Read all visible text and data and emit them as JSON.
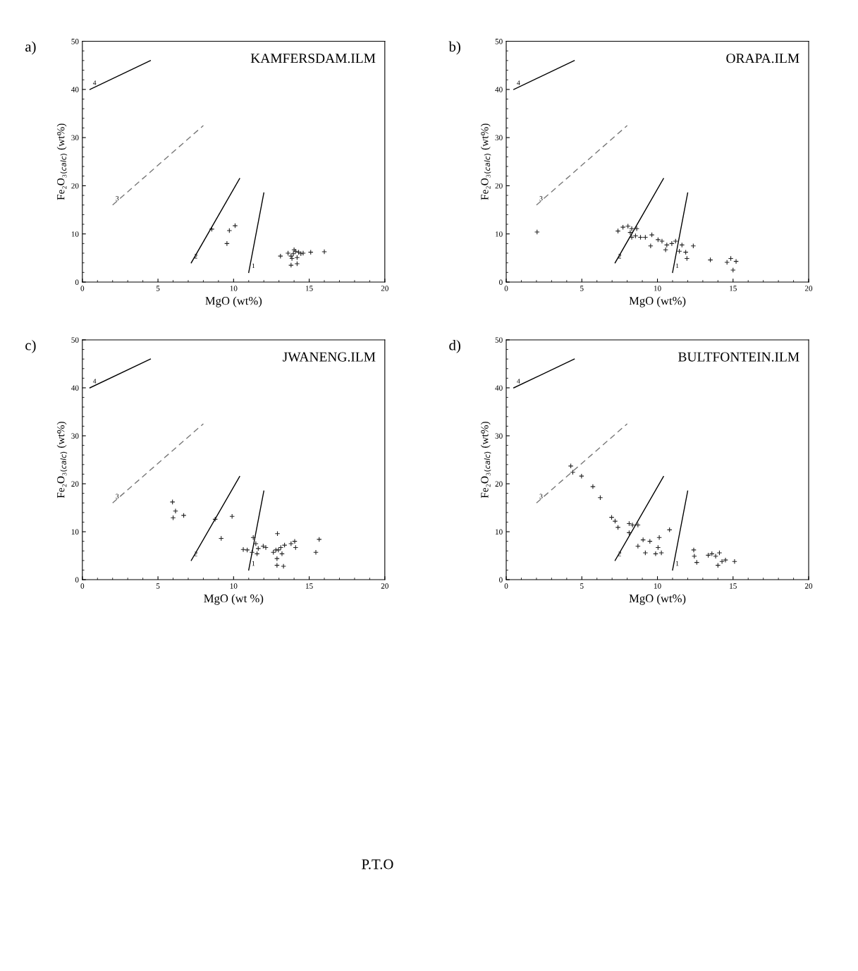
{
  "chart_data": [
    {
      "type": "scatter",
      "title": "a)",
      "subtitle": "KAMFERSDAM.ILM",
      "xlabel": "MgO (wt%)",
      "ylabel": "Fe₂O₃$_{(calc)}$ (wt%)",
      "xlim": [
        0,
        20
      ],
      "ylim": [
        0,
        50
      ],
      "xticks": [
        0,
        5,
        10,
        15,
        20
      ],
      "yticks": [
        0,
        10,
        20,
        30,
        40,
        50
      ],
      "grid": false,
      "series": [
        {
          "marker": "cross",
          "color": "#222222",
          "x": [
            10.1,
            9.72,
            9.56,
            8.56,
            13.1,
            13.6,
            13.8,
            13.95,
            14.1,
            14.3,
            14.45,
            14.2,
            13.86,
            13.8,
            14.2,
            14.6,
            15.1,
            16.0,
            14.0
          ],
          "values": [
            11.7,
            10.7,
            8.0,
            11.0,
            5.4,
            6.0,
            5.4,
            5.9,
            6.4,
            6.2,
            5.9,
            5.1,
            4.9,
            3.5,
            3.8,
            6.0,
            6.2,
            6.3,
            6.7
          ]
        },
        {
          "type": "line",
          "color": "#000000",
          "line_style": "solid",
          "x": [
            0.5,
            4.5
          ],
          "values": [
            40,
            46
          ]
        },
        {
          "type": "line",
          "color": "#777777",
          "line_style": "dashed",
          "x": [
            2,
            8
          ],
          "values": [
            16,
            32.5
          ]
        },
        {
          "type": "line",
          "color": "#000000",
          "line_style": "solid",
          "x": [
            7.2,
            10.4
          ],
          "values": [
            4,
            21.5
          ]
        },
        {
          "type": "line",
          "color": "#000000",
          "line_style": "solid",
          "x": [
            11,
            12
          ],
          "values": [
            2,
            18.5
          ]
        }
      ],
      "annotations": [
        {
          "text": "4",
          "x": 0.5,
          "y": 40
        },
        {
          "text": "3",
          "x": 2,
          "y": 16
        },
        {
          "text": "2",
          "x": 7.2,
          "y": 4
        },
        {
          "text": "1",
          "x": 11,
          "y": 2
        }
      ]
    },
    {
      "type": "scatter",
      "title": "b)",
      "subtitle": "ORAPA.ILM",
      "xlabel": "MgO (wt%)",
      "ylabel": "Fe₂O₃$_{(calc)}$ (wt%)",
      "xlim": [
        0,
        20
      ],
      "ylim": [
        0,
        50
      ],
      "xticks": [
        0,
        5,
        10,
        15,
        20
      ],
      "yticks": [
        0,
        10,
        20,
        30,
        40,
        50
      ],
      "grid": false,
      "series": [
        {
          "marker": "cross",
          "color": "#222222",
          "x": [
            2.04,
            7.39,
            7.72,
            8.05,
            8.3,
            8.63,
            8.2,
            8.3,
            8.55,
            8.88,
            9.2,
            9.63,
            9.55,
            10.04,
            10.3,
            10.54,
            10.62,
            10.95,
            11.2,
            11.62,
            11.45,
            11.87,
            12.37,
            11.95,
            13.5,
            14.6,
            14.85,
            15.2,
            15.0
          ],
          "values": [
            10.4,
            10.6,
            11.4,
            11.6,
            11.1,
            11.1,
            10.3,
            9.3,
            9.6,
            9.3,
            9.3,
            9.8,
            7.5,
            8.8,
            8.5,
            6.7,
            7.7,
            8.0,
            8.5,
            7.7,
            6.4,
            6.2,
            7.5,
            4.9,
            4.6,
            4.1,
            4.9,
            4.3,
            2.5
          ]
        },
        {
          "type": "line",
          "color": "#000000",
          "line_style": "solid",
          "x": [
            0.5,
            4.5
          ],
          "values": [
            40,
            46
          ]
        },
        {
          "type": "line",
          "color": "#777777",
          "line_style": "dashed",
          "x": [
            2,
            8
          ],
          "values": [
            16,
            32.5
          ]
        },
        {
          "type": "line",
          "color": "#000000",
          "line_style": "solid",
          "x": [
            7.2,
            10.4
          ],
          "values": [
            4,
            21.5
          ]
        },
        {
          "type": "line",
          "color": "#000000",
          "line_style": "solid",
          "x": [
            11,
            12
          ],
          "values": [
            2,
            18.5
          ]
        }
      ],
      "annotations": [
        {
          "text": "4",
          "x": 0.5,
          "y": 40
        },
        {
          "text": "3",
          "x": 2,
          "y": 16
        },
        {
          "text": "2",
          "x": 7.2,
          "y": 4
        },
        {
          "text": "1",
          "x": 11,
          "y": 2
        }
      ]
    },
    {
      "type": "scatter",
      "title": "c)",
      "subtitle": "JWANENG.ILM",
      "xlabel": "MgO (wt %)",
      "ylabel": "Fe₂O₃$_{(calc)}$ (wt%)",
      "xlim": [
        0,
        20
      ],
      "ylim": [
        0,
        50
      ],
      "xticks": [
        0,
        5,
        10,
        15,
        20
      ],
      "yticks": [
        0,
        10,
        20,
        30,
        40,
        50
      ],
      "grid": false,
      "series": [
        {
          "marker": "cross",
          "color": "#222222",
          "x": [
            5.96,
            6.16,
            6.0,
            6.7,
            8.78,
            9.9,
            9.18,
            10.64,
            10.9,
            11.3,
            11.47,
            11.22,
            11.55,
            11.63,
            11.96,
            12.13,
            12.63,
            12.8,
            12.87,
            12.87,
            12.96,
            13.12,
            13.37,
            12.9,
            13.2,
            13.3,
            13.8,
            14.04,
            14.1,
            15.44,
            15.66
          ],
          "values": [
            16.2,
            14.3,
            12.9,
            13.4,
            12.6,
            13.2,
            8.6,
            6.3,
            6.2,
            8.8,
            7.5,
            5.7,
            5.4,
            6.5,
            7.0,
            6.7,
            5.7,
            6.2,
            4.4,
            3.0,
            6.2,
            6.7,
            7.2,
            9.6,
            5.4,
            2.8,
            7.5,
            8.0,
            6.7,
            5.7,
            8.4
          ]
        },
        {
          "type": "line",
          "color": "#000000",
          "line_style": "solid",
          "x": [
            0.5,
            4.5
          ],
          "values": [
            40,
            46
          ]
        },
        {
          "type": "line",
          "color": "#777777",
          "line_style": "dashed",
          "x": [
            2,
            8
          ],
          "values": [
            16,
            32.5
          ]
        },
        {
          "type": "line",
          "color": "#000000",
          "line_style": "solid",
          "x": [
            7.2,
            10.4
          ],
          "values": [
            4,
            21.5
          ]
        },
        {
          "type": "line",
          "color": "#000000",
          "line_style": "solid",
          "x": [
            11,
            12
          ],
          "values": [
            2,
            18.5
          ]
        }
      ],
      "annotations": [
        {
          "text": "4",
          "x": 0.5,
          "y": 40
        },
        {
          "text": "3",
          "x": 2,
          "y": 16
        },
        {
          "text": "2",
          "x": 7.2,
          "y": 4
        },
        {
          "text": "1",
          "x": 11,
          "y": 2
        }
      ]
    },
    {
      "type": "scatter",
      "title": "d)",
      "subtitle": "BULTFONTEIN.ILM",
      "xlabel": "MgO (wt%)",
      "ylabel": "Fe₂O₃$_{(calc)}$ (wt%)",
      "xlim": [
        0,
        20
      ],
      "ylim": [
        0,
        50
      ],
      "xticks": [
        0,
        5,
        10,
        15,
        20
      ],
      "yticks": [
        0,
        10,
        20,
        30,
        40,
        50
      ],
      "grid": false,
      "series": [
        {
          "marker": "cross",
          "color": "#222222",
          "x": [
            4.27,
            4.4,
            4.98,
            5.73,
            6.22,
            6.97,
            7.2,
            7.39,
            8.13,
            8.35,
            8.71,
            8.13,
            8.71,
            9.05,
            9.2,
            9.5,
            9.88,
            10.04,
            10.12,
            10.26,
            10.8,
            12.4,
            12.44,
            12.6,
            13.36,
            13.6,
            13.85,
            14.1,
            14.0,
            14.27,
            14.5,
            15.1
          ],
          "values": [
            23.7,
            22.4,
            21.6,
            19.4,
            17.1,
            13.0,
            12.2,
            10.9,
            11.7,
            11.4,
            11.4,
            9.8,
            7.0,
            8.3,
            5.6,
            8.0,
            5.4,
            6.7,
            8.8,
            5.6,
            10.4,
            6.2,
            4.9,
            3.6,
            5.1,
            5.4,
            4.9,
            5.6,
            3.0,
            3.8,
            4.1,
            3.8
          ]
        },
        {
          "type": "line",
          "color": "#000000",
          "line_style": "solid",
          "x": [
            0.5,
            4.5
          ],
          "values": [
            40,
            46
          ]
        },
        {
          "type": "line",
          "color": "#777777",
          "line_style": "dashed",
          "x": [
            2,
            8
          ],
          "values": [
            16,
            32.5
          ]
        },
        {
          "type": "line",
          "color": "#000000",
          "line_style": "solid",
          "x": [
            7.2,
            10.4
          ],
          "values": [
            4,
            21.5
          ]
        },
        {
          "type": "line",
          "color": "#000000",
          "line_style": "solid",
          "x": [
            11,
            12
          ],
          "values": [
            2,
            18.5
          ]
        }
      ],
      "annotations": [
        {
          "text": "4",
          "x": 0.5,
          "y": 40
        },
        {
          "text": "3",
          "x": 2,
          "y": 16
        },
        {
          "text": "2",
          "x": 7.2,
          "y": 4
        },
        {
          "text": "1",
          "x": 11,
          "y": 2
        },
        "P.T.O"
      ]
    }
  ]
}
